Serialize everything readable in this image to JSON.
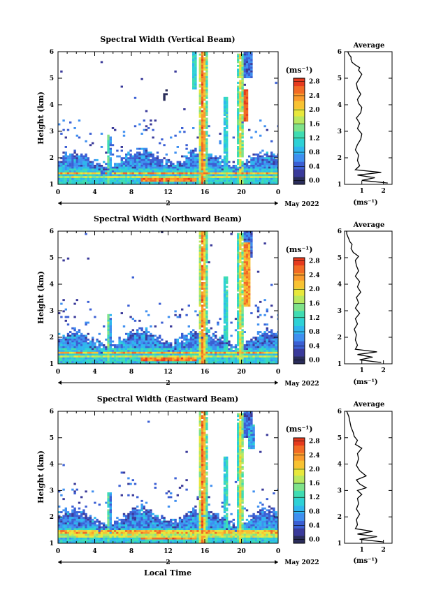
{
  "colors": {
    "scale": [
      "#2a2d5a",
      "#3a3a9a",
      "#3b5fd4",
      "#3f8ff0",
      "#2fb6ee",
      "#2ed1d6",
      "#3fdcb2",
      "#7ee28a",
      "#b8e860",
      "#e8e83c",
      "#f8c232",
      "#f99a2c",
      "#f26a24",
      "#e63a1e"
    ]
  },
  "panels": [
    {
      "title": "Spectral Width (Vertical Beam)",
      "average_title": "Average",
      "ylabel": "Height (km)",
      "date_label": "May 2022",
      "day_label": "2",
      "x_ticks": [
        "0",
        "4",
        "8",
        "12",
        "16",
        "20",
        "0"
      ],
      "y_ticks": [
        "1",
        "2",
        "3",
        "4",
        "5",
        "6"
      ],
      "units": "(ms⁻¹)",
      "avg_xlabel": "(ms⁻¹)",
      "avg_xticks": [
        "1",
        "2"
      ],
      "colorbar_ticks": [
        "0.0",
        "0.4",
        "0.8",
        "1.2",
        "1.6",
        "2.0",
        "2.4",
        "2.8"
      ],
      "chart_data": {
        "type": "heatmap",
        "x_unit": "local time (h)",
        "xlim": [
          0,
          24
        ],
        "ylim": [
          1,
          6
        ],
        "zlim": [
          0,
          3.0
        ],
        "average_profile": {
          "type": "line",
          "xlim": [
            0.2,
            2.4
          ],
          "ylim": [
            1,
            6
          ],
          "x": [
            2.2,
            1.0,
            1.6,
            0.8,
            1.9,
            0.7,
            0.9,
            0.8,
            0.85,
            0.7,
            0.8,
            0.95,
            1.0,
            0.8,
            0.9,
            0.75,
            0.95,
            1.0,
            0.85,
            0.8,
            0.95,
            0.8,
            0.75,
            0.9,
            1.0,
            0.85,
            0.9,
            0.7,
            0.55,
            0.5,
            0.5,
            0.4,
            0.35
          ],
          "y": [
            1.05,
            1.15,
            1.25,
            1.35,
            1.45,
            1.55,
            1.7,
            1.9,
            2.1,
            2.3,
            2.5,
            2.7,
            2.9,
            3.1,
            3.3,
            3.5,
            3.7,
            3.9,
            4.05,
            4.2,
            4.4,
            4.6,
            4.8,
            5.0,
            5.15,
            5.3,
            5.4,
            5.5,
            5.6,
            5.7,
            5.8,
            5.9,
            6.0
          ]
        }
      }
    },
    {
      "title": "Spectral Width (Northward Beam)",
      "average_title": "Average",
      "ylabel": "Height (km)",
      "date_label": "May 2022",
      "day_label": "2",
      "x_ticks": [
        "0",
        "4",
        "8",
        "12",
        "16",
        "20",
        "0"
      ],
      "y_ticks": [
        "1",
        "2",
        "3",
        "4",
        "5",
        "6"
      ],
      "units": "(ms⁻¹)",
      "avg_xlabel": "(ms⁻¹)",
      "avg_xticks": [
        "1",
        "2"
      ],
      "colorbar_ticks": [
        "0.0",
        "0.4",
        "0.8",
        "1.2",
        "1.6",
        "2.0",
        "2.4",
        "2.8"
      ],
      "chart_data": {
        "type": "heatmap",
        "x_unit": "local time (h)",
        "xlim": [
          0,
          24
        ],
        "ylim": [
          1,
          6
        ],
        "zlim": [
          0,
          3.0
        ],
        "average_profile": {
          "type": "line",
          "xlim": [
            0.2,
            2.4
          ],
          "ylim": [
            1,
            6
          ],
          "x": [
            1.9,
            0.9,
            1.5,
            0.8,
            1.7,
            0.7,
            0.8,
            0.7,
            0.75,
            0.65,
            0.8,
            0.7,
            0.9,
            0.7,
            0.85,
            0.75,
            0.95,
            0.8,
            0.9,
            0.7,
            0.85,
            0.75,
            0.7,
            0.85,
            0.6,
            0.5,
            0.55,
            0.45,
            0.4,
            0.35,
            0.3,
            0.3
          ],
          "y": [
            1.05,
            1.15,
            1.25,
            1.35,
            1.45,
            1.55,
            1.7,
            1.9,
            2.1,
            2.3,
            2.5,
            2.7,
            2.9,
            3.1,
            3.3,
            3.5,
            3.7,
            3.9,
            4.1,
            4.3,
            4.5,
            4.7,
            4.9,
            5.05,
            5.2,
            5.35,
            5.5,
            5.6,
            5.7,
            5.8,
            5.9,
            6.0
          ]
        }
      }
    },
    {
      "title": "Spectral Width (Eastward Beam)",
      "average_title": "Average",
      "ylabel": "Height (km)",
      "date_label": "May 2022",
      "day_label": "2",
      "x_ticks": [
        "0",
        "4",
        "8",
        "12",
        "16",
        "20",
        "0"
      ],
      "y_ticks": [
        "1",
        "2",
        "3",
        "4",
        "5",
        "6"
      ],
      "units": "(ms⁻¹)",
      "avg_xlabel": "(ms⁻¹)",
      "avg_xticks": [
        "1",
        "2"
      ],
      "colorbar_ticks": [
        "0.0",
        "0.4",
        "0.8",
        "1.2",
        "1.6",
        "2.0",
        "2.4",
        "2.8"
      ],
      "xlabel": "Local Time",
      "chart_data": {
        "type": "heatmap",
        "x_unit": "local time (h)",
        "xlim": [
          0,
          24
        ],
        "ylim": [
          1,
          6
        ],
        "zlim": [
          0,
          3.0
        ],
        "average_profile": {
          "type": "line",
          "xlim": [
            0.2,
            2.4
          ],
          "ylim": [
            1,
            6
          ],
          "x": [
            2.0,
            0.9,
            1.7,
            0.8,
            1.5,
            0.7,
            0.8,
            0.75,
            0.9,
            0.75,
            0.85,
            0.8,
            1.0,
            0.8,
            1.2,
            0.9,
            0.75,
            1.2,
            0.9,
            0.75,
            0.85,
            0.8,
            1.0,
            0.7,
            0.8,
            0.65,
            0.6,
            0.5,
            0.45,
            0.4,
            0.3
          ],
          "y": [
            1.05,
            1.15,
            1.25,
            1.35,
            1.45,
            1.55,
            1.7,
            1.9,
            2.1,
            2.3,
            2.5,
            2.7,
            2.85,
            3.0,
            3.1,
            3.25,
            3.4,
            3.55,
            3.75,
            3.95,
            4.2,
            4.4,
            4.6,
            4.75,
            4.9,
            5.05,
            5.2,
            5.4,
            5.6,
            5.8,
            6.0
          ]
        }
      }
    }
  ]
}
